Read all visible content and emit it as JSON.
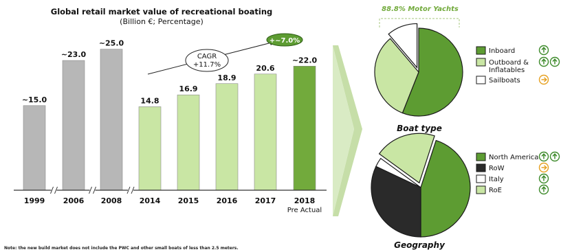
{
  "chart_data": [
    {
      "type": "bar",
      "title": "Global retail market value of recreational boating",
      "subtitle": "(Billion €; Percentage)",
      "categories": [
        "1999",
        "2006",
        "2008",
        "2014",
        "2015",
        "2016",
        "2017",
        "2018"
      ],
      "category_sublabels": [
        "",
        "",
        "",
        "",
        "",
        "",
        "",
        "Pre Actual"
      ],
      "values": [
        15.0,
        23.0,
        25.0,
        14.8,
        16.9,
        18.9,
        20.6,
        22.0
      ],
      "value_labels": [
        "~15.0",
        "~23.0",
        "~25.0",
        "14.8",
        "16.9",
        "18.9",
        "20.6",
        "~22.0"
      ],
      "ylim": [
        0,
        28
      ],
      "bar_colors": [
        "#b7b7b7",
        "#b7b7b7",
        "#b7b7b7",
        "#c9e6a4",
        "#c9e6a4",
        "#c9e6a4",
        "#c9e6a4",
        "#72aa3c"
      ],
      "axis_breaks_after": [
        "1999",
        "2006",
        "2008"
      ],
      "annotations": {
        "cagr_label": "CAGR",
        "cagr_value": "+11.7%",
        "growth_badge": "+~7.0%"
      },
      "grid": false,
      "note": "Note: the new build market does not include the PWC and other small boats of less than 2.5 meters."
    },
    {
      "type": "pie",
      "title": "Boat type",
      "header_label": "88.8% Motor Yachts",
      "labels": [
        "Inboard",
        "Outboard & Inflatables",
        "Sailboats"
      ],
      "legend_lines": [
        [
          "Inboard"
        ],
        [
          "Outboard &",
          "Inflatables"
        ],
        [
          "Sailboats"
        ]
      ],
      "values": [
        56.0,
        32.8,
        11.2
      ],
      "colors": [
        "#5d9c32",
        "#c9e6a4",
        "#ffffff"
      ],
      "exploded": [
        "Sailboats"
      ],
      "trend_icons": [
        [
          "up"
        ],
        [
          "up",
          "up"
        ],
        [
          "right"
        ]
      ]
    },
    {
      "type": "pie",
      "title": "Geography",
      "labels": [
        "North America",
        "RoW",
        "Italy",
        "RoE"
      ],
      "values": [
        45.0,
        32.0,
        3.0,
        20.0
      ],
      "colors": [
        "#5d9c32",
        "#2a2a2a",
        "#ffffff",
        "#c9e6a4"
      ],
      "exploded": [
        "RoE"
      ],
      "trend_icons": [
        [
          "up",
          "up"
        ],
        [
          "right"
        ],
        [
          "up"
        ],
        [
          "up"
        ]
      ]
    }
  ],
  "colors": {
    "icon_up": "#3d8a2a",
    "icon_right": "#e6a020",
    "motor_yachts_label": "#72aa3c",
    "arrow": "#c6dea8"
  }
}
